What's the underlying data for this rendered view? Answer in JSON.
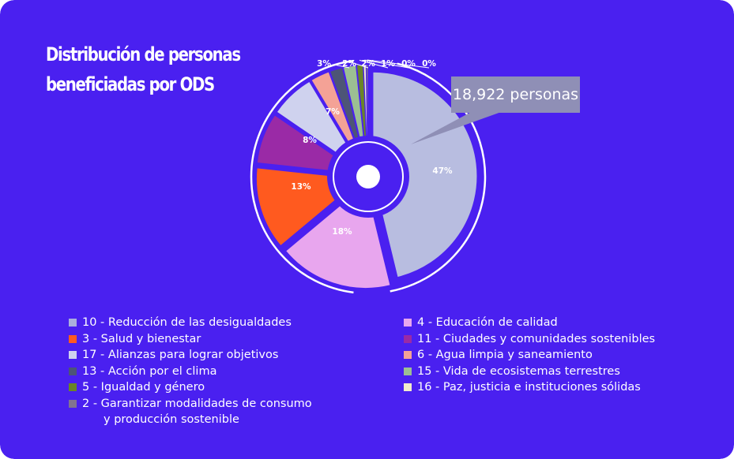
{
  "background_color": "#4a20f0",
  "title_lines": [
    "Distribución de personas",
    "beneficiadas por ODS"
  ],
  "callout": {
    "text": "18,922 personas",
    "color": "#8f8fb6"
  },
  "chart_data": {
    "type": "pie",
    "style": "exploded-donut",
    "title": "Distribución de personas beneficiadas por ODS",
    "legend_placement": "bottom",
    "slices": [
      {
        "label": "10 - Reducción de las desigualdades",
        "value": 47,
        "value_label": "47%",
        "color": "#b8bde0"
      },
      {
        "label": "4 - Educación de calidad",
        "value": 18,
        "value_label": "18%",
        "color": "#e8a6ee"
      },
      {
        "label": "3 - Salud y bienestar",
        "value": 13,
        "value_label": "13%",
        "color": "#ff5a1f"
      },
      {
        "label": "11 - Ciudades y comunidades sostenibles",
        "value": 8,
        "value_label": "8%",
        "color": "#9a2aa6"
      },
      {
        "label": "17 - Alianzas para lograr objetivos",
        "value": 7,
        "value_label": "7%",
        "color": "#cfd2ee"
      },
      {
        "label": "6 - Agua limpia y saneamiento",
        "value": 3,
        "value_label": "3%",
        "color": "#f4a296"
      },
      {
        "label": "13 - Acción por el clima",
        "value": 2,
        "value_label": "2%",
        "color": "#4d5576"
      },
      {
        "label": "15 - Vida de ecosistemas terrestres",
        "value": 2,
        "value_label": "2%",
        "color": "#9cbf93"
      },
      {
        "label": "5 - Igualdad y género",
        "value": 1,
        "value_label": "1%",
        "color": "#6a8526"
      },
      {
        "label": "16 - Paz, justicia e instituciones sólidas",
        "value": 0.4,
        "value_label": "0%",
        "color": "#f2eccc"
      },
      {
        "label": "2 - Garantizar modalidades de consumo y producción  sostenible",
        "value": 0.3,
        "value_label": "0%",
        "color": "#827490"
      }
    ]
  },
  "legend_left": [
    {
      "label": "10 - Reducción de las desigualdades",
      "color": "#aab0dc"
    },
    {
      "label": "3 - Salud y bienestar",
      "color": "#ff5a1f"
    },
    {
      "label": "17 - Alianzas para lograr objetivos",
      "color": "#cfd2ee"
    },
    {
      "label": "13 - Acción por el clima",
      "color": "#4d5576"
    },
    {
      "label": "5 - Igualdad y género",
      "color": "#6a8526"
    },
    {
      "label": "2 - Garantizar modalidades de consumo",
      "label_line2": "y producción  sostenible",
      "color": "#827490"
    }
  ],
  "legend_right": [
    {
      "label": "4 - Educación de calidad",
      "color": "#e8a6ee"
    },
    {
      "label": "11 - Ciudades y comunidades sostenibles",
      "color": "#9a2aa6"
    },
    {
      "label": "6 - Agua limpia y saneamiento",
      "color": "#f4a296"
    },
    {
      "label": "15 - Vida de ecosistemas terrestres",
      "color": "#9cbf93"
    },
    {
      "label": "16 - Paz, justicia e instituciones sólidas",
      "color": "#f2eccc"
    }
  ]
}
